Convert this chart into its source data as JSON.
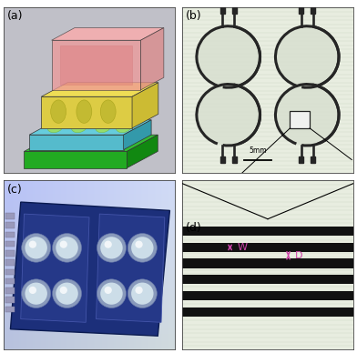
{
  "fig_width": 3.92,
  "fig_height": 3.88,
  "dpi": 100,
  "bg_color": "#ffffff",
  "panel_labels": [
    "(a)",
    "(b)",
    "(c)",
    "(d)"
  ],
  "panel_label_fontsize": 9,
  "panel_a_bg": "#c0c0c8",
  "panel_b_bg": "#e8ede0",
  "panel_c_bg": "#b8c4d8",
  "panel_d_bg": "#e8ede0",
  "electrode_color": "#252525",
  "stripe_color": "#111111",
  "arrow_color": "#cc44aa",
  "label_W": "W",
  "label_D": "D",
  "scale_label": "5mm",
  "elec_fill": "#d8dfd0",
  "lw_elec": 2.2
}
